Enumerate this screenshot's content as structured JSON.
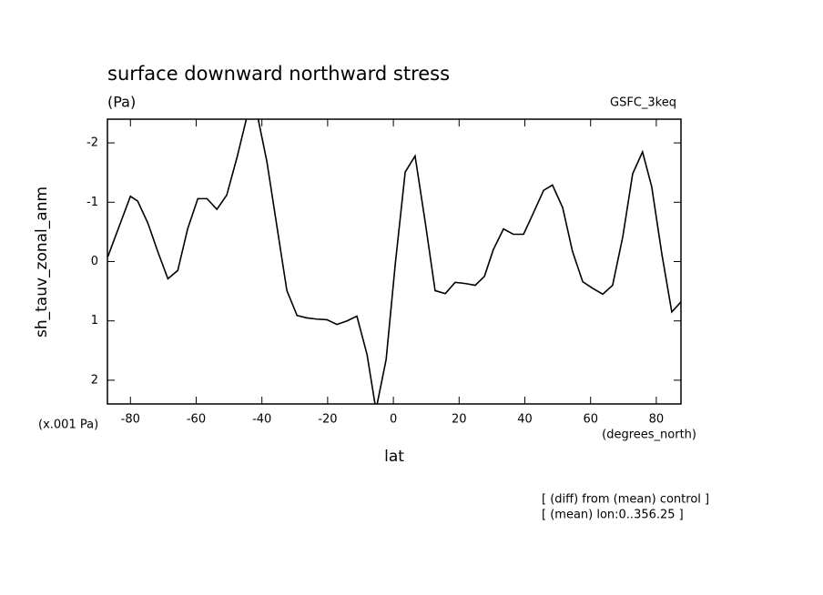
{
  "chart_data": {
    "type": "line",
    "title": "surface downward northward stress",
    "subtitle": "(Pa)",
    "model": "GSFC_3keq",
    "y_label": "sh_tauv_zonal_anm",
    "y_unit": "(x.001 Pa)",
    "x_label": "lat",
    "x_unit": "(degrees_north)",
    "notes": [
      "[ (diff) from (mean) control ]",
      "[ (mean) lon:0..356.25 ]"
    ],
    "x": [
      -86.9,
      -80,
      -77.8,
      -74.7,
      -71.7,
      -68.6,
      -65.6,
      -62.6,
      -59.5,
      -56.7,
      -53.7,
      -50.7,
      -47.6,
      -44.3,
      -41.5,
      -38.5,
      -35.4,
      -32.4,
      -29.3,
      -26.3,
      -23.3,
      -20.2,
      -17.2,
      -14.1,
      -11.1,
      -8.0,
      -5.3,
      -2.2,
      0.6,
      3.6,
      6.6,
      9.7,
      12.7,
      15.8,
      18.8,
      21.9,
      24.9,
      27.7,
      30.4,
      33.5,
      36.5,
      39.6,
      42.6,
      45.7,
      48.4,
      51.5,
      54.5,
      57.6,
      60.6,
      63.7,
      66.7,
      69.8,
      72.8,
      75.8,
      78.6,
      81.7,
      84.7,
      87.5
    ],
    "series": [
      {
        "name": "sh_tauv_zonal_anm",
        "color": "#000000",
        "values": [
          -0.08,
          -1.1,
          -1.02,
          -0.65,
          -0.17,
          0.29,
          0.15,
          -0.55,
          -1.06,
          -1.06,
          -0.88,
          -1.12,
          -1.75,
          -2.5,
          -2.5,
          -1.69,
          -0.58,
          0.49,
          0.91,
          0.95,
          0.97,
          0.98,
          1.06,
          1.0,
          0.92,
          1.57,
          2.5,
          1.65,
          0.03,
          -1.51,
          -1.78,
          -0.66,
          0.49,
          0.54,
          0.35,
          0.37,
          0.4,
          0.25,
          -0.2,
          -0.55,
          -0.46,
          -0.46,
          -0.82,
          -1.2,
          -1.29,
          -0.91,
          -0.17,
          0.34,
          0.45,
          0.55,
          0.4,
          -0.42,
          -1.48,
          -1.85,
          -1.26,
          -0.12,
          0.85,
          0.68
        ]
      }
    ],
    "xlim": [
      -87,
      87.5
    ],
    "xticks": [
      -80,
      -60,
      -40,
      -20,
      0,
      20,
      40,
      60,
      80
    ],
    "ylim": [
      -2.4,
      2.4
    ],
    "y_inverted": true,
    "yticks": [
      -2,
      -1,
      0,
      1,
      2
    ]
  }
}
